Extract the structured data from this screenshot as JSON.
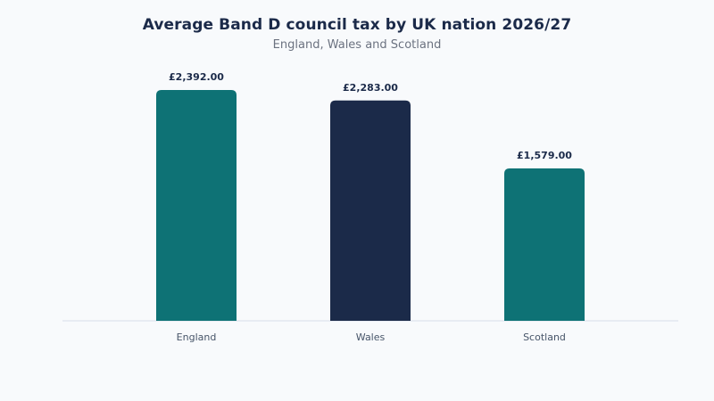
{
  "chart_data": {
    "type": "bar",
    "title": "Average Band D council tax by UK nation 2026/27",
    "subtitle": "England, Wales and Scotland",
    "categories": [
      "England",
      "Wales",
      "Scotland"
    ],
    "values": [
      2392.0,
      2283.0,
      1579.0
    ],
    "value_labels": [
      "£2,392.00",
      "£2,283.00",
      "£1,579.00"
    ],
    "colors": [
      "#0e7275",
      "#1b2a49",
      "#0e7275"
    ],
    "xlabel": "",
    "ylabel": "",
    "ylim": [
      0,
      2392
    ],
    "grid": false,
    "legend": "none"
  }
}
